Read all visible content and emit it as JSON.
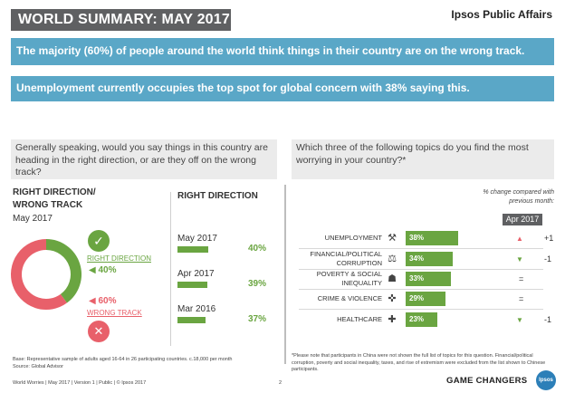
{
  "header": {
    "title": "WORLD SUMMARY: MAY 2017",
    "brand": "Ipsos Public Affairs"
  },
  "banners": [
    "The majority (60%) of people around the world think things in their country are on the wrong track.",
    "Unemployment currently occupies the top spot for global concern with 38% saying this."
  ],
  "questions": {
    "left": "Generally speaking, would you say things in this country are heading in the right direction, or are they off on the wrong track?",
    "right": "Which three of the following topics do you find the most worrying in your country?*"
  },
  "colors": {
    "right_direction": "#6aa541",
    "wrong_track": "#e8606a",
    "banner": "#5aa7c7",
    "dark": "#5f6062"
  },
  "chart_data": [
    {
      "type": "pie",
      "title": "RIGHT DIRECTION/ WRONG TRACK",
      "title_lines": [
        "RIGHT DIRECTION/",
        "WRONG TRACK"
      ],
      "subtitle": "May 2017",
      "slices": [
        {
          "name": "RIGHT DIRECTION",
          "value": 40,
          "label": "40%",
          "icon": "check-icon"
        },
        {
          "name": "WRONG TRACK",
          "value": 60,
          "label": "60%",
          "icon": "cross-icon"
        }
      ]
    },
    {
      "type": "bar",
      "title": "RIGHT DIRECTION",
      "categories": [
        "May 2017",
        "Apr 2017",
        "Mar 2016"
      ],
      "values": [
        40,
        39,
        37
      ],
      "labels": [
        "40%",
        "39%",
        "37%"
      ]
    },
    {
      "type": "bar",
      "title": "",
      "period_badge": "Apr 2017",
      "change_note": "% change compared with previous month:",
      "categories": [
        "UNEMPLOYMENT",
        "FINANCIAL/POLITICAL CORRUPTION",
        "POVERTY & SOCIAL INEQUALITY",
        "CRIME & VIOLENCE",
        "HEALTHCARE"
      ],
      "category_lines": [
        [
          "UNEMPLOYMENT"
        ],
        [
          "FINANCIAL/POLITICAL",
          "CORRUPTION"
        ],
        [
          "POVERTY & SOCIAL",
          "INEQUALITY"
        ],
        [
          "CRIME & VIOLENCE"
        ],
        [
          "HEALTHCARE"
        ]
      ],
      "icons": [
        "hammer-icon",
        "scales-icon",
        "people-icon",
        "gun-icon",
        "medical-icon"
      ],
      "values": [
        38,
        34,
        33,
        29,
        23
      ],
      "labels": [
        "38%",
        "34%",
        "33%",
        "29%",
        "23%"
      ],
      "changes": [
        "+1",
        "-1",
        "=",
        "=",
        "-1"
      ],
      "change_direction": [
        "up",
        "down",
        "none",
        "none",
        "down"
      ]
    }
  ],
  "footer": {
    "base": "Base: Representative sample of adults aged 16-64 in 26 participating countries. c.18,000 per month",
    "source": "Source: Global Advisor",
    "note": "*Please note that participants in China were not shown the full list of topics for this question. Financial/political corruption, poverty and social inequality, taxes, and rise of extremism were excluded from the list shown to Chinese participants.",
    "meta": "World Worries | May 2017 | Version 1 | Public | © Ipsos 2017",
    "page": "2",
    "tagline": "GAME CHANGERS",
    "logo": "Ipsos"
  }
}
